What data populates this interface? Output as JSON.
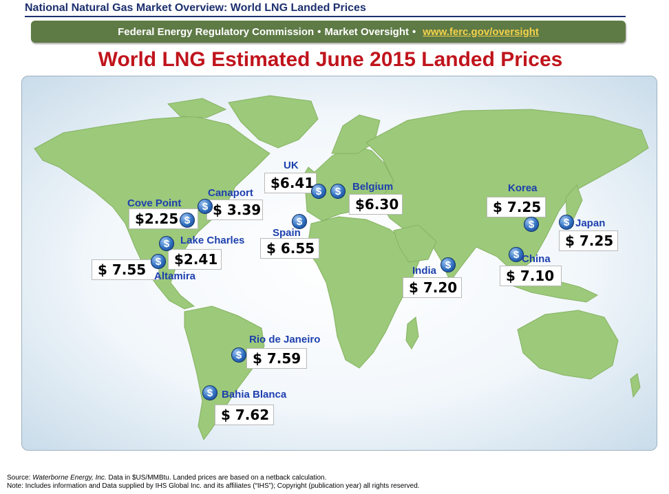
{
  "header": {
    "title": "National Natural Gas Market Overview: World LNG Landed Prices",
    "banner_org": "Federal Energy Regulatory Commission",
    "banner_sep": "•",
    "banner_section": "Market Oversight",
    "banner_url": "www.ferc.gov/oversight"
  },
  "main_title": "World LNG Estimated June 2015 Landed Prices",
  "terminals": [
    {
      "name": "Cove Point",
      "price": "$2.25"
    },
    {
      "name": "Canaport",
      "price": "$  3.39"
    },
    {
      "name": "Lake Charles",
      "price": "$2.41"
    },
    {
      "name": "Altamira",
      "price": "$  7.55"
    },
    {
      "name": "UK",
      "price": "$6.41"
    },
    {
      "name": "Belgium",
      "price": "$6.30"
    },
    {
      "name": "Spain",
      "price": "$  6.55"
    },
    {
      "name": "India",
      "price": "$  7.20"
    },
    {
      "name": "Korea",
      "price": "$  7.25"
    },
    {
      "name": "Japan",
      "price": "$  7.25"
    },
    {
      "name": "China",
      "price": "$  7.10"
    },
    {
      "name": "Rio de Janeiro",
      "price": "$  7.59"
    },
    {
      "name": "Bahia Blanca",
      "price": "$  7.62"
    }
  ],
  "coin_symbol": "$",
  "footnote": {
    "source_prefix": "Source:",
    "source_name": "Waterborne Energy, Inc.",
    "source_text": "Data in $US/MMBtu. Landed prices are based on a netback calculation.",
    "note": "Note: Includes information and Data supplied by IHS Global Inc. and its affiliates (“IHS”); Copyright (publication year) all rights reserved."
  },
  "colors": {
    "title_red": "#c0141c",
    "banner_green": "#5e7a45",
    "url_yellow": "#f4d24a",
    "label_blue": "#1d3fae",
    "land_green": "#9cc97a",
    "ocean": "#eef4fa"
  }
}
